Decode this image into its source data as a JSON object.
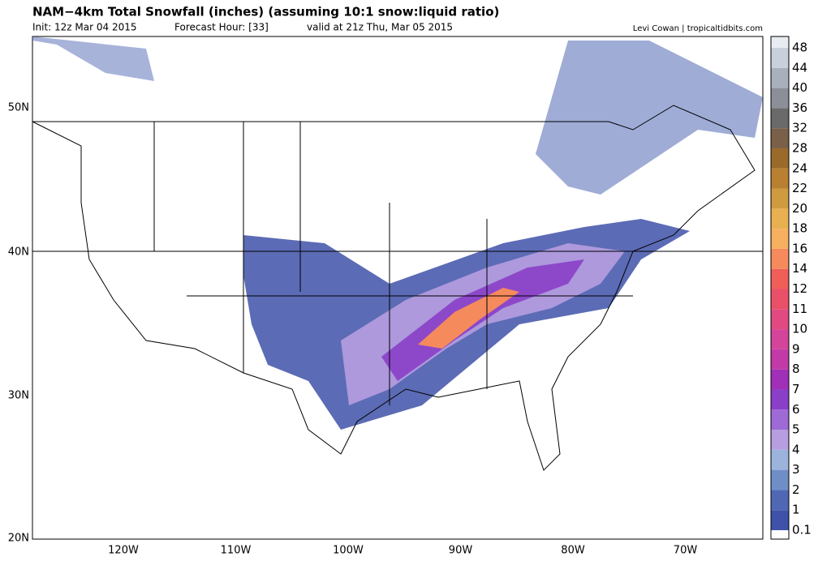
{
  "header": {
    "title": "NAM−4km Total Snowfall (inches) (assuming 10:1 snow:liquid ratio)",
    "init": "Init: 12z Mar 04 2015",
    "forecast_hour": "Forecast Hour: [33]",
    "valid": "valid at 21z Thu, Mar 05 2015",
    "credit": "Levi Cowan | tropicaltidbits.com"
  },
  "map": {
    "lat_labels": [
      "50N",
      "40N",
      "30N",
      "20N"
    ],
    "lon_labels": [
      "120W",
      "110W",
      "100W",
      "90W",
      "80W",
      "70W"
    ]
  },
  "colorbar": {
    "labels": [
      0.1,
      1,
      2,
      3,
      4,
      5,
      6,
      7,
      8,
      9,
      10,
      11,
      12,
      14,
      16,
      18,
      20,
      22,
      24,
      28,
      32,
      36,
      40,
      44,
      48
    ],
    "colors": [
      "#ffffff",
      "#3f51a8",
      "#5068b4",
      "#6f8ec8",
      "#9cb4dc",
      "#b69ee0",
      "#9d6ad6",
      "#8a3fc8",
      "#a030b8",
      "#c23aa8",
      "#d4449a",
      "#e04a80",
      "#ea5068",
      "#f05e58",
      "#f58a5c",
      "#f6b060",
      "#e8b050",
      "#d09a40",
      "#b88030",
      "#9a6a2a",
      "#7a6048",
      "#6a6a6a",
      "#8a8f98",
      "#a8b0bc",
      "#c8d0dc",
      "#e8ecf2"
    ]
  }
}
